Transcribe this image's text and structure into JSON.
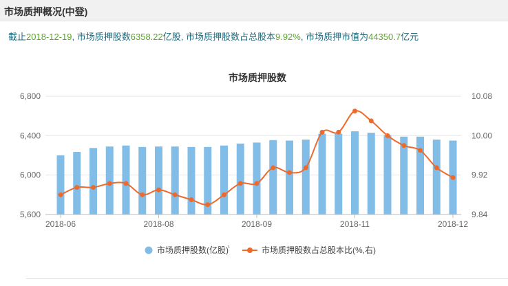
{
  "header": {
    "title": "市场质押概况(中登)"
  },
  "summary": {
    "lead": "截止",
    "date": "2018-12-19",
    "t1": ", 市场质押股数",
    "shares": "6358.22",
    "t2": "亿股, 市场质押股数占总股本",
    "ratio": "9.92%",
    "t3": ", 市场质押市值为",
    "value": "44350.7",
    "t4": "亿元"
  },
  "colors": {
    "bar": "#82bde8",
    "line": "#ec6a2c",
    "summary_text": "#1d6a7d",
    "summary_number": "#5aa829"
  },
  "chart_data": {
    "type": "bar",
    "title": "市场质押股数",
    "x_tick_labels": [
      "2018-06",
      "2018-08",
      "2018-09",
      "2018-11",
      "2018-12"
    ],
    "x_tick_positions": [
      0,
      6,
      12,
      18,
      24
    ],
    "y_left": {
      "ticks": [
        "5,600",
        "6,000",
        "6,400",
        "6,800"
      ],
      "ylim": [
        5600,
        6800
      ]
    },
    "y_right": {
      "ticks": [
        "9.84",
        "9.92",
        "10.00",
        "10.08"
      ],
      "ylim": [
        9.84,
        10.08
      ]
    },
    "grid": "horizontal",
    "legend_position": "bottom",
    "series": [
      {
        "name": "市场质押股数(亿股)",
        "legend_suffix": "¹",
        "type": "bar",
        "axis": "left",
        "values": [
          6200,
          6235,
          6275,
          6290,
          6300,
          6285,
          6290,
          6290,
          6285,
          6285,
          6300,
          6320,
          6330,
          6355,
          6350,
          6360,
          6420,
          6420,
          6445,
          6430,
          6405,
          6390,
          6390,
          6360,
          6350
        ]
      },
      {
        "name": "市场质押股数占总股本比(%,右)",
        "type": "line",
        "axis": "right",
        "values": [
          9.88,
          9.895,
          9.895,
          9.903,
          9.903,
          9.88,
          9.89,
          9.88,
          9.87,
          9.86,
          9.88,
          9.903,
          9.903,
          9.935,
          9.925,
          9.935,
          10.007,
          10.007,
          10.05,
          10.03,
          10.0,
          9.98,
          9.97,
          9.935,
          9.915
        ]
      }
    ]
  }
}
